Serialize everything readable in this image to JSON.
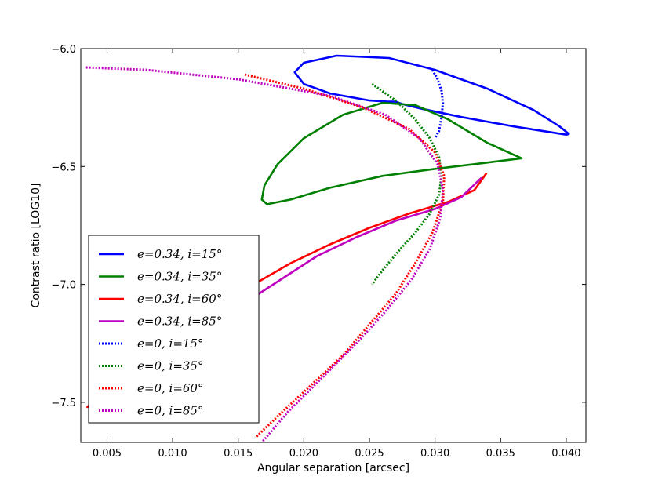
{
  "chart_data": {
    "type": "line",
    "xlabel": "Angular separation [arcsec]",
    "ylabel": "Contrast ratio [LOG10]",
    "xlim": [
      0.003,
      0.0415
    ],
    "ylim": [
      -7.67,
      -6.0
    ],
    "grid": false,
    "legend_position": "lower-left",
    "xticks": [
      {
        "value": 0.005,
        "label": "0.005"
      },
      {
        "value": 0.01,
        "label": "0.010"
      },
      {
        "value": 0.015,
        "label": "0.015"
      },
      {
        "value": 0.02,
        "label": "0.020"
      },
      {
        "value": 0.025,
        "label": "0.025"
      },
      {
        "value": 0.03,
        "label": "0.030"
      },
      {
        "value": 0.035,
        "label": "0.035"
      },
      {
        "value": 0.04,
        "label": "0.040"
      }
    ],
    "yticks": [
      {
        "value": -6.0,
        "label": "−6.0"
      },
      {
        "value": -6.5,
        "label": "−6.5"
      },
      {
        "value": -7.0,
        "label": "−7.0"
      },
      {
        "value": -7.5,
        "label": "−7.5"
      }
    ],
    "series": [
      {
        "name": "e=0.34, i=15°",
        "color": "#0000ff",
        "style": "solid",
        "x": [
          0.04,
          0.036,
          0.032,
          0.029,
          0.0275,
          0.027,
          0.0264,
          0.025,
          0.022,
          0.02,
          0.0193,
          0.02,
          0.0225,
          0.0265,
          0.03,
          0.034,
          0.0375,
          0.0395,
          0.0402,
          0.04
        ],
        "y": [
          -6.365,
          -6.33,
          -6.29,
          -6.255,
          -6.235,
          -6.225,
          -6.225,
          -6.22,
          -6.19,
          -6.15,
          -6.1,
          -6.06,
          -6.03,
          -6.04,
          -6.09,
          -6.17,
          -6.26,
          -6.33,
          -6.362,
          -6.365
        ]
      },
      {
        "name": "e=0.34, i=35°",
        "color": "#008000",
        "style": "solid",
        "x": [
          0.0366,
          0.033,
          0.03,
          0.026,
          0.022,
          0.019,
          0.0172,
          0.0168,
          0.017,
          0.018,
          0.02,
          0.023,
          0.026,
          0.0285,
          0.031,
          0.034,
          0.0366
        ],
        "y": [
          -6.465,
          -6.49,
          -6.51,
          -6.54,
          -6.59,
          -6.64,
          -6.66,
          -6.64,
          -6.58,
          -6.49,
          -6.38,
          -6.28,
          -6.23,
          -6.24,
          -6.3,
          -6.4,
          -6.465
        ]
      },
      {
        "name": "e=0.34, i=60°",
        "color": "#ff0000",
        "style": "solid",
        "x": [
          0.0339,
          0.033,
          0.031,
          0.028,
          0.025,
          0.022,
          0.019,
          0.0165,
          0.0145,
          0.0125,
          0.01,
          0.0075,
          0.005,
          0.0035
        ],
        "y": [
          -6.53,
          -6.6,
          -6.65,
          -6.7,
          -6.76,
          -6.83,
          -6.91,
          -6.99,
          -7.07,
          -7.15,
          -7.25,
          -7.35,
          -7.45,
          -7.52
        ]
      },
      {
        "name": "e=0.34, i=85°",
        "color": "#bf00bf",
        "style": "solid",
        "x": [
          0.0335,
          0.032,
          0.03,
          0.027,
          0.024,
          0.021,
          0.0185,
          0.016,
          0.014,
          0.012,
          0.01,
          0.008,
          0.006,
          0.004
        ],
        "y": [
          -6.55,
          -6.63,
          -6.68,
          -6.73,
          -6.8,
          -6.88,
          -6.97,
          -7.06,
          -7.14,
          -7.22,
          -7.3,
          -7.39,
          -7.48,
          -7.56
        ]
      },
      {
        "name": "e=0, i=15°",
        "color": "#0000ff",
        "style": "dotted",
        "x": [
          0.0298,
          0.0302,
          0.0305,
          0.0306,
          0.0305,
          0.0303,
          0.03
        ],
        "y": [
          -6.09,
          -6.13,
          -6.18,
          -6.23,
          -6.29,
          -6.35,
          -6.38
        ]
      },
      {
        "name": "e=0, i=35°",
        "color": "#008000",
        "style": "dotted",
        "x": [
          0.0252,
          0.027,
          0.0285,
          0.0296,
          0.0303,
          0.0305,
          0.0303,
          0.0296,
          0.0285,
          0.0272,
          0.026,
          0.0252
        ],
        "y": [
          -6.15,
          -6.22,
          -6.3,
          -6.38,
          -6.46,
          -6.54,
          -6.62,
          -6.7,
          -6.78,
          -6.86,
          -6.94,
          -7.0
        ]
      },
      {
        "name": "e=0, i=60°",
        "color": "#ff0000",
        "style": "dotted",
        "x": [
          0.0155,
          0.02,
          0.0245,
          0.028,
          0.03,
          0.0307,
          0.0306,
          0.0298,
          0.0285,
          0.027,
          0.025,
          0.023,
          0.0205,
          0.018,
          0.0163
        ],
        "y": [
          -6.11,
          -6.17,
          -6.25,
          -6.34,
          -6.44,
          -6.54,
          -6.65,
          -6.78,
          -6.91,
          -7.04,
          -7.17,
          -7.3,
          -7.43,
          -7.56,
          -7.65
        ]
      },
      {
        "name": "e=0, i=85°",
        "color": "#bf00bf",
        "style": "dotted",
        "x": [
          0.0034,
          0.008,
          0.015,
          0.022,
          0.0262,
          0.0288,
          0.0302,
          0.0306,
          0.0304,
          0.0296,
          0.0282,
          0.0263,
          0.024,
          0.0215,
          0.0188,
          0.0168
        ],
        "y": [
          -6.08,
          -6.09,
          -6.13,
          -6.2,
          -6.28,
          -6.38,
          -6.49,
          -6.6,
          -6.72,
          -6.85,
          -6.98,
          -7.11,
          -7.25,
          -7.39,
          -7.54,
          -7.67
        ]
      }
    ]
  }
}
